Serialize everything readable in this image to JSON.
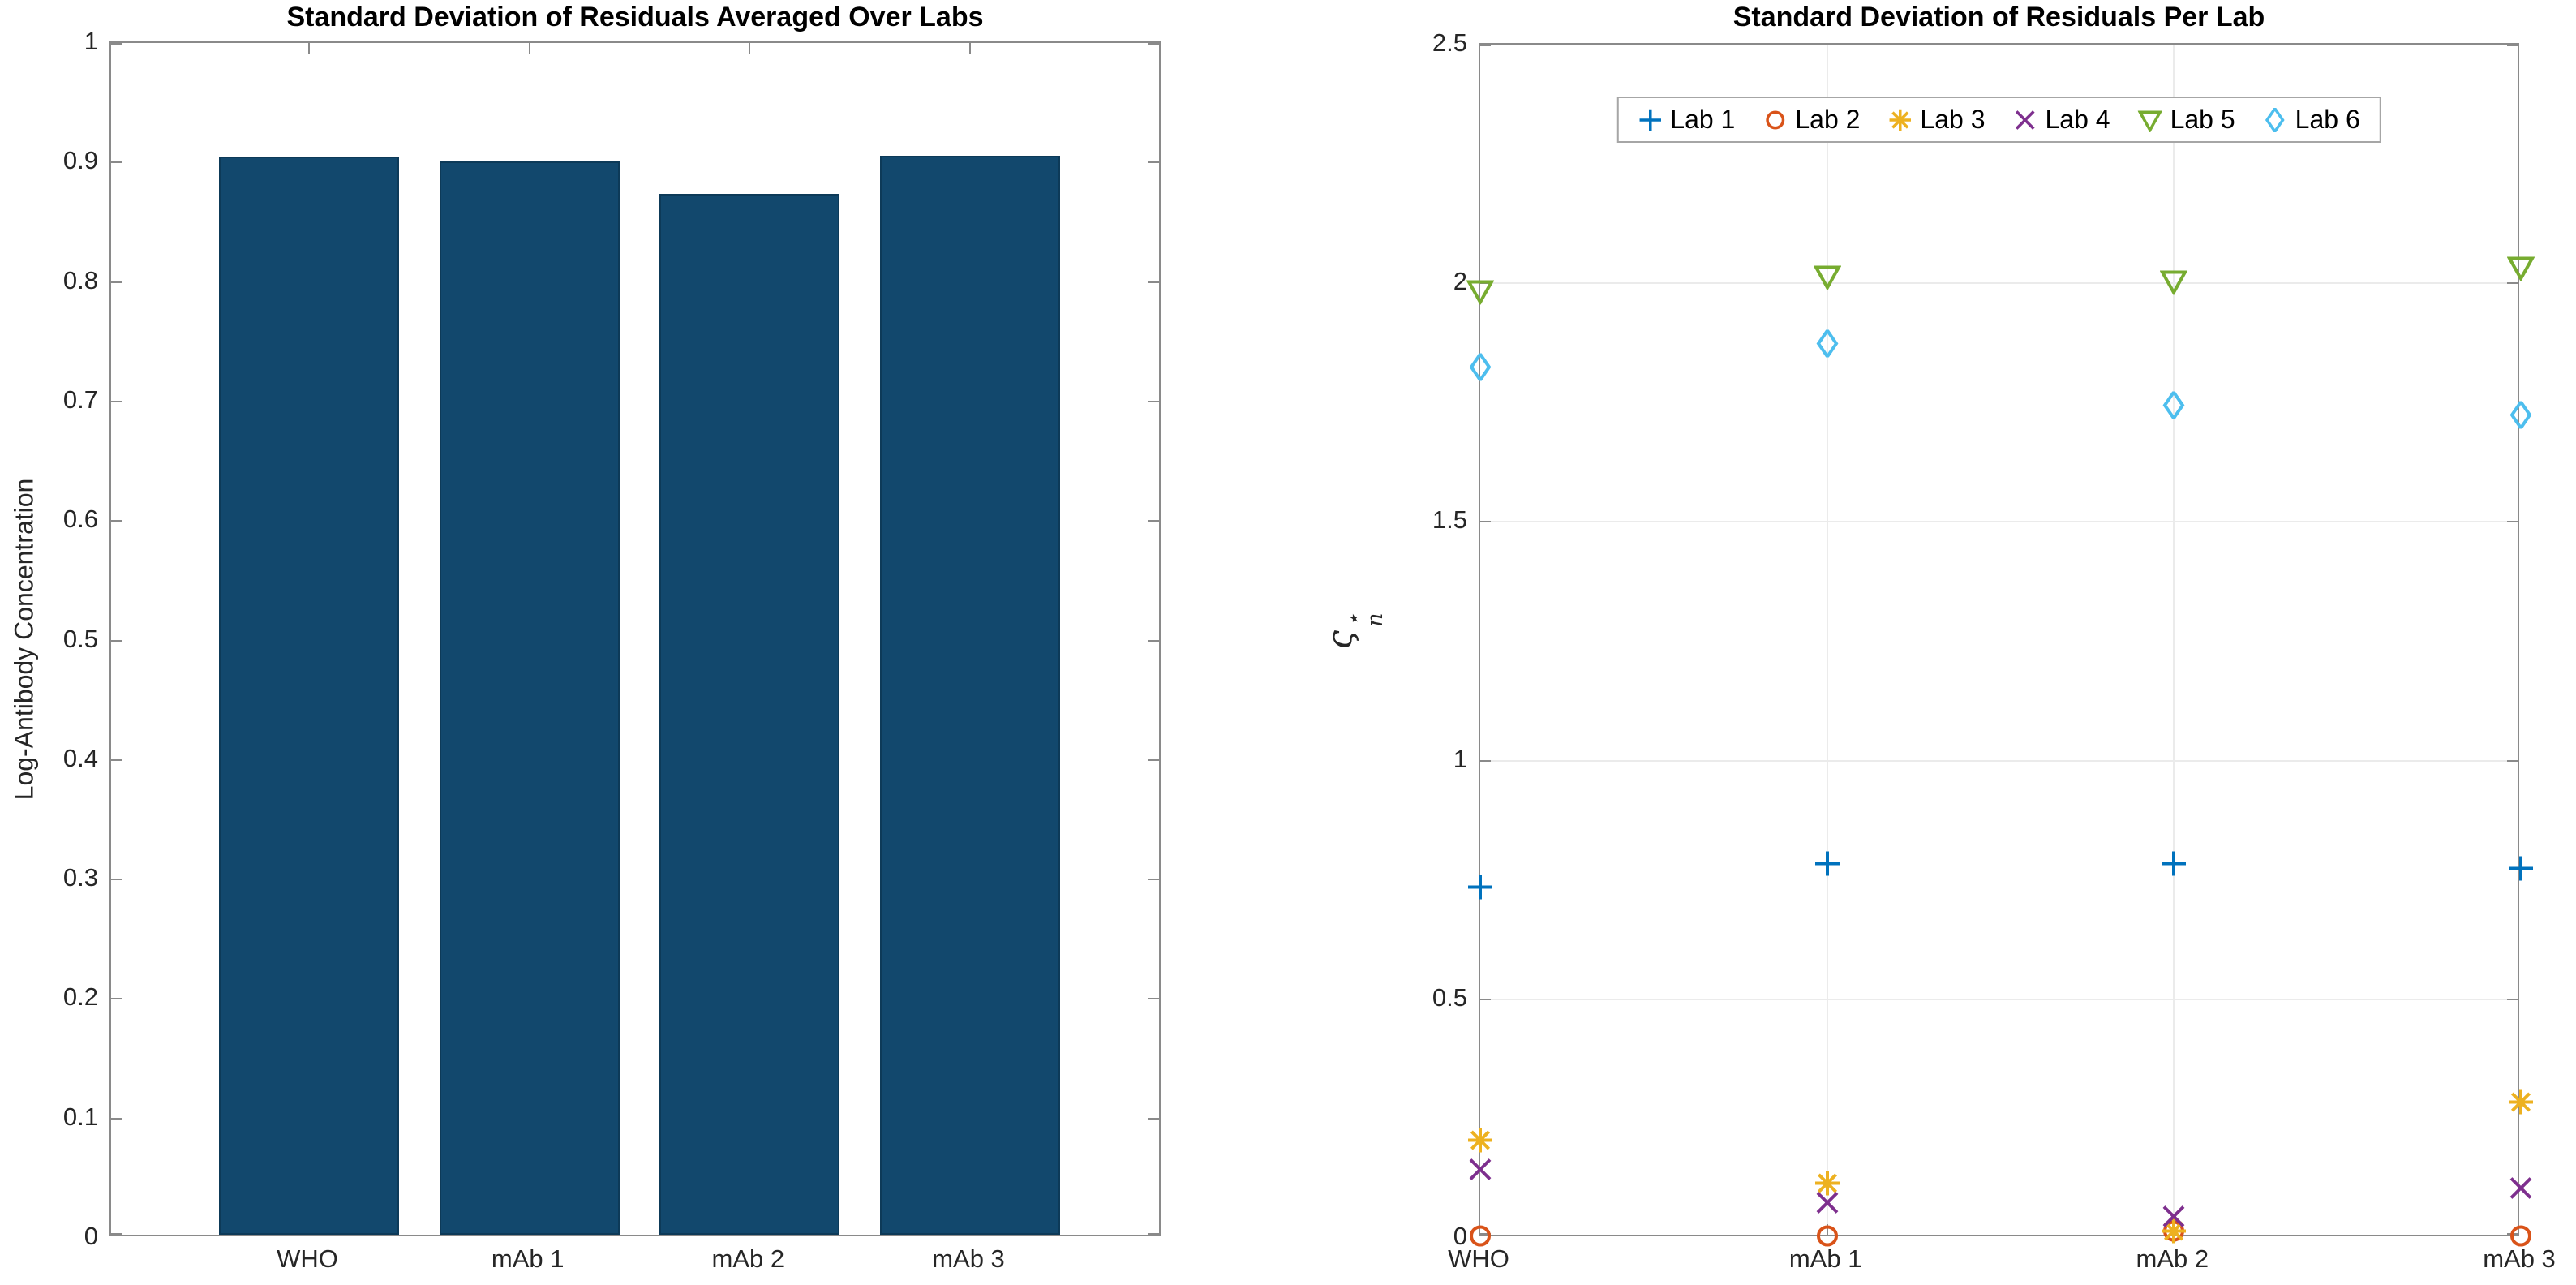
{
  "chart_data": [
    {
      "type": "bar",
      "title": "Standard Deviation of Residuals Averaged Over Labs",
      "ylabel": "Log-Antibody Concentration",
      "xlabel": "",
      "categories": [
        "WHO",
        "mAb 1",
        "mAb 2",
        "mAb 3"
      ],
      "values": [
        0.902,
        0.898,
        0.871,
        0.903
      ],
      "ylim": [
        0,
        1
      ],
      "yticks": [
        0,
        0.1,
        0.2,
        0.3,
        0.4,
        0.5,
        0.6,
        0.7,
        0.8,
        0.9,
        1
      ],
      "grid": false,
      "bar_color": "#12486d"
    },
    {
      "type": "scatter",
      "title": "Standard Deviation of Residuals Per Lab",
      "ylabel": {
        "base": "ς",
        "sup": "⋆",
        "sub": "n"
      },
      "xlabel": "",
      "categories": [
        "WHO",
        "mAb 1",
        "mAb 2",
        "mAb 3"
      ],
      "ylim": [
        0,
        2.5
      ],
      "yticks": [
        0,
        0.5,
        1,
        1.5,
        2,
        2.5
      ],
      "grid": true,
      "legend_position": "top-center",
      "series": [
        {
          "name": "Lab 1",
          "marker": "plus",
          "color": "#0072BD",
          "values": [
            0.73,
            0.78,
            0.78,
            0.77
          ]
        },
        {
          "name": "Lab 2",
          "marker": "circle",
          "color": "#D95319",
          "values": [
            0.0,
            0.0,
            0.01,
            0.0
          ]
        },
        {
          "name": "Lab 3",
          "marker": "asterisk",
          "color": "#EDB120",
          "values": [
            0.2,
            0.11,
            0.01,
            0.28
          ]
        },
        {
          "name": "Lab 4",
          "marker": "x",
          "color": "#7E2F8E",
          "values": [
            0.14,
            0.07,
            0.04,
            0.1
          ]
        },
        {
          "name": "Lab 5",
          "marker": "triangle-down",
          "color": "#77AC30",
          "values": [
            1.98,
            2.01,
            2.0,
            2.03
          ]
        },
        {
          "name": "Lab 6",
          "marker": "diamond",
          "color": "#4DBEEE",
          "values": [
            1.82,
            1.87,
            1.74,
            1.72
          ]
        }
      ]
    }
  ]
}
